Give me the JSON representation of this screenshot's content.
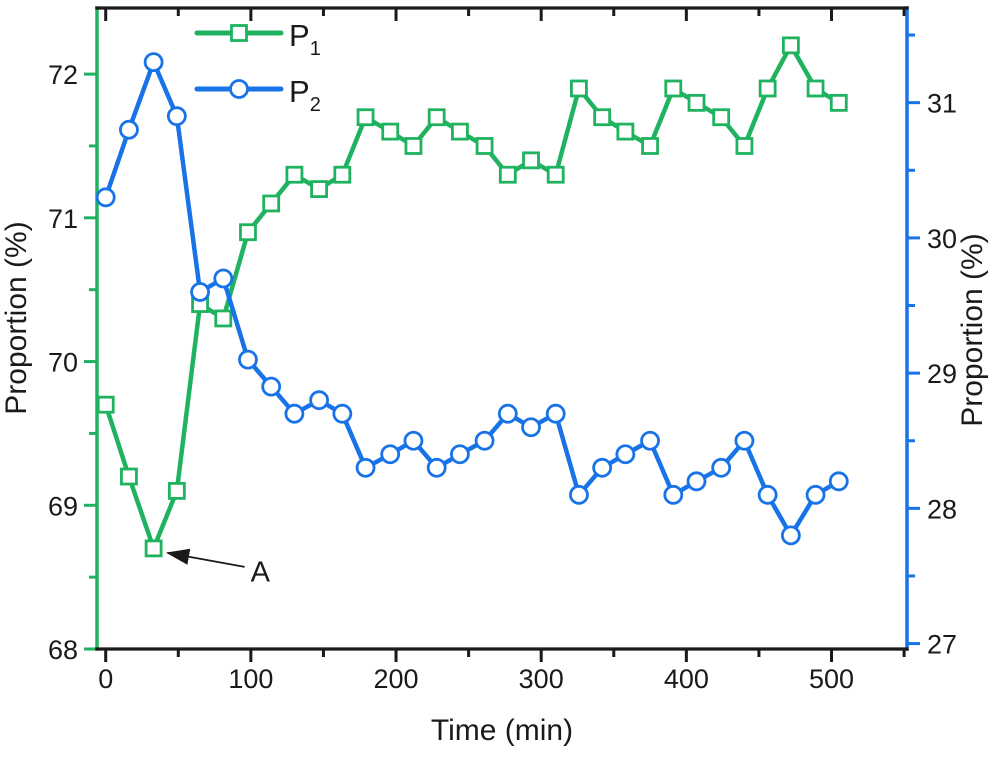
{
  "chart_data": {
    "type": "line",
    "title": "",
    "xlabel": "Time (min)",
    "ylabel_left": "Proportion (%)",
    "ylabel_right": "Proportion (%)",
    "xlim": [
      -6,
      552
    ],
    "ylim_left": [
      68,
      72.46
    ],
    "ylim_right": [
      26.96,
      31.7
    ],
    "x_major_ticks": [
      0,
      100,
      200,
      300,
      400,
      500
    ],
    "x_minor_ticks": [
      50,
      150,
      250,
      350,
      450,
      550
    ],
    "left_major_ticks": [
      68,
      69,
      70,
      71,
      72
    ],
    "left_minor_ticks": [
      68.5,
      69.5,
      70.5,
      71.5
    ],
    "right_major_ticks": [
      27,
      28,
      29,
      30,
      31
    ],
    "right_minor_ticks": [
      27.5,
      28.5,
      29.5,
      30.5,
      31.5
    ],
    "grid": "off",
    "legend_position": "upper-left-inside",
    "x": [
      0,
      16,
      33,
      49,
      65,
      81,
      98,
      114,
      130,
      147,
      163,
      179,
      196,
      212,
      228,
      244,
      261,
      277,
      293,
      310,
      326,
      342,
      358,
      375,
      391,
      407,
      424,
      440,
      456,
      472,
      489,
      505
    ],
    "series": [
      {
        "name": "P1",
        "label": "P",
        "sub": "1",
        "axis": "left",
        "color": "#1fb25f",
        "marker": "square",
        "values": [
          69.7,
          69.2,
          68.7,
          69.1,
          70.4,
          70.3,
          70.9,
          71.1,
          71.3,
          71.2,
          71.3,
          71.7,
          71.6,
          71.5,
          71.7,
          71.6,
          71.5,
          71.3,
          71.4,
          71.3,
          71.9,
          71.7,
          71.6,
          71.5,
          71.9,
          71.8,
          71.7,
          71.5,
          71.9,
          72.2,
          71.9,
          71.8
        ]
      },
      {
        "name": "P2",
        "label": "P",
        "sub": "2",
        "axis": "right",
        "color": "#1873e8",
        "marker": "circle",
        "values": [
          30.3,
          30.8,
          31.3,
          30.9,
          29.6,
          29.7,
          29.1,
          28.9,
          28.7,
          28.8,
          28.7,
          28.3,
          28.4,
          28.5,
          28.3,
          28.4,
          28.5,
          28.7,
          28.6,
          28.7,
          28.1,
          28.3,
          28.4,
          28.5,
          28.1,
          28.2,
          28.3,
          28.5,
          28.1,
          27.8,
          28.1,
          28.2
        ]
      }
    ],
    "annotation": {
      "label": "A",
      "x": 33,
      "y": 68.7,
      "axis": "left"
    },
    "colors": {
      "frame": "#1a1a1a",
      "left_axis": "#1fb25f",
      "right_axis": "#1873e8",
      "text": "#1a1a1a",
      "marker_fill": "#ffffff"
    }
  },
  "legend": {
    "items": [
      {
        "label": "P",
        "sub": "1"
      },
      {
        "label": "P",
        "sub": "2"
      }
    ]
  }
}
